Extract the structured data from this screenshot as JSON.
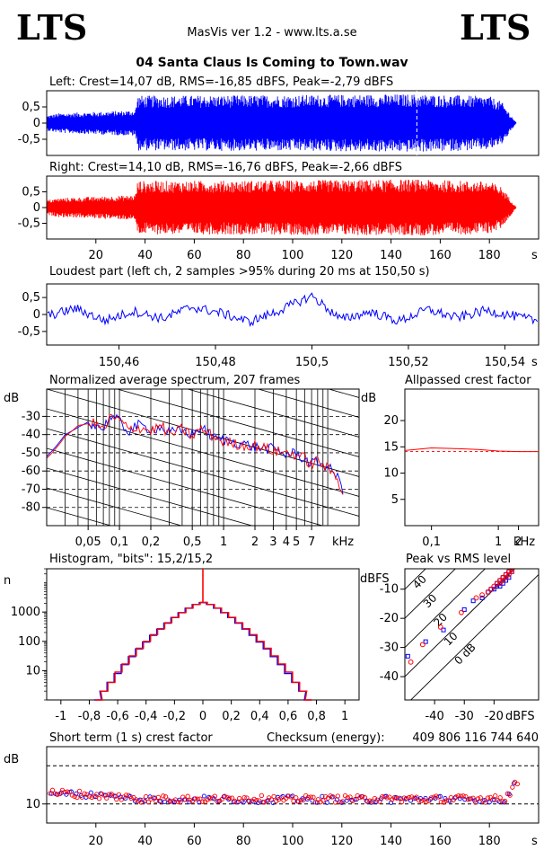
{
  "header": {
    "logo_left": "LTS",
    "logo_right": "LTS",
    "app_title": "MasVis ver 1.2 - www.lts.a.se",
    "file_name": "04 Santa Claus Is Coming to Town.wav"
  },
  "colors": {
    "left": "#0000ff",
    "right": "#ff0000",
    "axis": "#000000"
  },
  "chart_data": [
    {
      "id": "left-waveform",
      "type": "area",
      "title": "Left: Crest=14,07 dB, RMS=-16,85 dBFS, Peak=-2,79 dBFS",
      "x_unit": "s",
      "xlim": [
        0,
        200
      ],
      "ylim": [
        -1,
        1
      ],
      "y_ticks": [
        0.5,
        0,
        -0.5
      ],
      "y_tick_labels": [
        "0,5",
        "0",
        "-0,5"
      ],
      "envelope": {
        "x": [
          0,
          5,
          36,
          37,
          50,
          100,
          150,
          180,
          185,
          188,
          191
        ],
        "y": [
          0.25,
          0.32,
          0.42,
          0.9,
          0.9,
          0.92,
          0.95,
          0.88,
          0.7,
          0.35,
          0
        ]
      },
      "marker_x": 150.5
    },
    {
      "id": "right-waveform",
      "type": "area",
      "title": "Right: Crest=14,10 dB, RMS=-16,76 dBFS, Peak=-2,66 dBFS",
      "x_unit": "s",
      "xlim": [
        0,
        200
      ],
      "ylim": [
        -1,
        1
      ],
      "y_ticks": [
        0.5,
        0,
        -0.5
      ],
      "y_tick_labels": [
        "0,5",
        "0",
        "-0,5"
      ],
      "x_ticks": [
        20,
        40,
        60,
        80,
        100,
        120,
        140,
        160,
        180
      ],
      "x_tick_labels": [
        "20",
        "40",
        "60",
        "80",
        "100",
        "120",
        "140",
        "160",
        "180"
      ],
      "envelope": {
        "x": [
          0,
          5,
          36,
          37,
          50,
          100,
          150,
          180,
          185,
          188,
          191
        ],
        "y": [
          0.25,
          0.32,
          0.42,
          0.9,
          0.9,
          0.92,
          0.95,
          0.88,
          0.7,
          0.35,
          0
        ]
      }
    },
    {
      "id": "loudest-part",
      "type": "line",
      "title": "Loudest part (left  ch, 2 samples >95% during 20 ms at 150,50 s)",
      "x_unit": "s",
      "xlim": [
        150.445,
        150.547
      ],
      "ylim": [
        -0.9,
        0.9
      ],
      "y_ticks": [
        0.5,
        0,
        -0.5
      ],
      "y_tick_labels": [
        "0,5",
        "0",
        "-0,5"
      ],
      "x_ticks": [
        150.46,
        150.48,
        150.5,
        150.52,
        150.54
      ],
      "x_tick_labels": [
        "150,46",
        "150,48",
        "150,5",
        "150,52",
        "150,54"
      ],
      "x": [
        150.445,
        150.451,
        150.457,
        150.463,
        150.469,
        150.475,
        150.481,
        150.487,
        150.493,
        150.5,
        150.506,
        150.512,
        150.518,
        150.524,
        150.53,
        150.536,
        150.542,
        150.547
      ],
      "y": [
        -0.05,
        0.18,
        -0.18,
        0.1,
        -0.12,
        0.22,
        0.05,
        -0.22,
        0.1,
        0.55,
        -0.15,
        0.08,
        -0.2,
        0.15,
        -0.1,
        0.12,
        -0.05,
        -0.2
      ]
    },
    {
      "id": "average-spectrum",
      "type": "line",
      "title": "Normalized average spectrum, 207 frames",
      "ylabel": "dB",
      "x_unit": "kHz",
      "x_log": true,
      "xlim": [
        0.02,
        20
      ],
      "ylim": [
        -90,
        -15
      ],
      "y_ticks": [
        -30,
        -40,
        -50,
        -60,
        -70,
        -80
      ],
      "y_tick_labels": [
        "-30",
        "-40",
        "-50",
        "-60",
        "-70",
        "-80"
      ],
      "x_ticks": [
        0.05,
        0.1,
        0.2,
        0.5,
        1,
        2,
        3,
        4,
        5,
        7
      ],
      "x_tick_labels": [
        "0,05",
        "0,1",
        "0,2",
        "0,5",
        "1",
        "2",
        "3",
        "4",
        "5",
        "7"
      ],
      "left": {
        "x": [
          0.02,
          0.025,
          0.03,
          0.04,
          0.05,
          0.06,
          0.07,
          0.08,
          0.1,
          0.12,
          0.15,
          0.2,
          0.25,
          0.3,
          0.4,
          0.5,
          0.6,
          0.8,
          1,
          1.5,
          2,
          3,
          4,
          5,
          6,
          7,
          8,
          10,
          12,
          14,
          16
        ],
        "y": [
          -52,
          -46,
          -40,
          -36,
          -33,
          -35,
          -37,
          -30,
          -33,
          -38,
          -35,
          -37,
          -36,
          -39,
          -38,
          -40,
          -36,
          -42,
          -43,
          -45,
          -47,
          -48,
          -51,
          -50,
          -54,
          -56,
          -55,
          -58,
          -62,
          -70,
          -85
        ]
      },
      "right": {
        "x": [
          0.02,
          0.025,
          0.03,
          0.04,
          0.05,
          0.06,
          0.07,
          0.08,
          0.1,
          0.12,
          0.15,
          0.2,
          0.25,
          0.3,
          0.4,
          0.5,
          0.6,
          0.8,
          1,
          1.5,
          2,
          3,
          4,
          5,
          6,
          7,
          8,
          10,
          12,
          14,
          16
        ],
        "y": [
          -53,
          -47,
          -41,
          -35,
          -34,
          -34,
          -38,
          -31,
          -32,
          -37,
          -36,
          -38,
          -35,
          -40,
          -37,
          -41,
          -37,
          -41,
          -44,
          -46,
          -46,
          -49,
          -50,
          -51,
          -53,
          -57,
          -54,
          -59,
          -63,
          -71,
          -86
        ]
      }
    },
    {
      "id": "allpassed-crest",
      "type": "line",
      "title": "Allpassed crest factor",
      "ylabel": "dB",
      "x_unit": "kHz",
      "x_log": true,
      "xlim": [
        0.04,
        4
      ],
      "ylim": [
        0,
        26
      ],
      "y_ticks": [
        20,
        15,
        10,
        5
      ],
      "y_tick_labels": [
        "20",
        "15",
        "10",
        "5"
      ],
      "x_ticks": [
        0.1,
        1,
        2
      ],
      "x_tick_labels": [
        "0,1",
        "1",
        "2"
      ],
      "x": [
        0.04,
        0.07,
        0.1,
        0.2,
        0.5,
        1,
        2,
        4
      ],
      "y": [
        14.3,
        14.6,
        14.8,
        14.7,
        14.5,
        14.2,
        14.1,
        14.1
      ],
      "ref_y": 14.1
    },
    {
      "id": "histogram",
      "type": "bar",
      "title": "Histogram, \"bits\": 15,2/15,2",
      "ylabel": "n",
      "y_log": true,
      "xlim": [
        -1.1,
        1.1
      ],
      "ylim": [
        1,
        30000
      ],
      "y_ticks": [
        1000,
        100,
        10
      ],
      "y_tick_labels": [
        "1000",
        "100",
        "10"
      ],
      "x_ticks": [
        -1,
        -0.8,
        -0.6,
        -0.4,
        -0.2,
        0,
        0.2,
        0.4,
        0.6,
        0.8,
        1
      ],
      "x_tick_labels": [
        "-1",
        "-0,8",
        "-0,6",
        "-0,4",
        "-0,2",
        "0",
        "0,2",
        "0,4",
        "0,6",
        "0,8",
        "1"
      ],
      "x": [
        -0.74,
        -0.7,
        -0.65,
        -0.6,
        -0.55,
        -0.5,
        -0.45,
        -0.4,
        -0.35,
        -0.3,
        -0.25,
        -0.2,
        -0.15,
        -0.1,
        -0.05,
        0,
        0.05,
        0.1,
        0.15,
        0.2,
        0.25,
        0.3,
        0.35,
        0.4,
        0.45,
        0.5,
        0.55,
        0.6,
        0.65,
        0.7,
        0.74
      ],
      "left": [
        1,
        2,
        4,
        8,
        16,
        30,
        55,
        95,
        160,
        260,
        420,
        650,
        950,
        1350,
        1800,
        2100,
        1800,
        1350,
        950,
        650,
        420,
        260,
        160,
        95,
        55,
        30,
        16,
        8,
        4,
        2,
        1
      ],
      "right": [
        1,
        2,
        4,
        9,
        17,
        32,
        58,
        100,
        170,
        270,
        430,
        660,
        960,
        1360,
        1820,
        2150,
        1820,
        1360,
        960,
        660,
        430,
        270,
        170,
        100,
        58,
        32,
        17,
        9,
        4,
        2,
        1
      ]
    },
    {
      "id": "peak-vs-rms",
      "type": "scatter",
      "title": "Peak vs RMS level",
      "ylabel": "dBFS",
      "x_unit": "dBFS",
      "xlim": [
        -50,
        -5
      ],
      "ylim": [
        -48,
        -3
      ],
      "y_ticks": [
        -10,
        -20,
        -30,
        -40
      ],
      "y_tick_labels": [
        "-10",
        "-20",
        "-30",
        "-40"
      ],
      "x_ticks": [
        -40,
        -30,
        -20
      ],
      "x_tick_labels": [
        "-40",
        "-30",
        "-20"
      ],
      "diagonal_labels": [
        "40",
        "30",
        "20",
        "10",
        "0 dB"
      ],
      "left": {
        "x": [
          -49,
          -43,
          -37,
          -30,
          -27,
          -24,
          -22,
          -21,
          -20,
          -19,
          -19,
          -18,
          -18,
          -17,
          -17,
          -16,
          -16,
          -15,
          -15,
          -14
        ],
        "y": [
          -33,
          -28,
          -24,
          -17,
          -14,
          -13,
          -11,
          -10,
          -10,
          -9,
          -8,
          -9,
          -7,
          -8,
          -6,
          -7,
          -5,
          -6,
          -4,
          -4
        ]
      },
      "right": {
        "x": [
          -48,
          -44,
          -38,
          -31,
          -26,
          -24,
          -22,
          -21,
          -20,
          -19,
          -18,
          -18,
          -17,
          -17,
          -16,
          -16,
          -15,
          -15,
          -14,
          -14
        ],
        "y": [
          -35,
          -29,
          -23,
          -18,
          -13,
          -12,
          -11,
          -10,
          -9,
          -8,
          -8,
          -7,
          -7,
          -6,
          -6,
          -5,
          -5,
          -4,
          -4,
          -3
        ]
      }
    },
    {
      "id": "short-term-crest",
      "type": "scatter",
      "title": "Short term (1 s) crest factor",
      "checksum_label": "Checksum (energy):",
      "checksum_value": "409 806 116 744 640",
      "ylabel": "dB",
      "x_unit": "s",
      "xlim": [
        0,
        200
      ],
      "ylim": [
        5,
        25
      ],
      "y_ticks": [
        10
      ],
      "y_tick_labels": [
        "10"
      ],
      "dashed_y": [
        10,
        20
      ],
      "x_ticks": [
        20,
        40,
        60,
        80,
        100,
        120,
        140,
        160,
        180
      ],
      "x_tick_labels": [
        "20",
        "40",
        "60",
        "80",
        "100",
        "120",
        "140",
        "160",
        "180"
      ],
      "left_mean": 11.2,
      "right_mean": 11.3,
      "start_bump": 13,
      "end_rise": 15.5
    }
  ]
}
